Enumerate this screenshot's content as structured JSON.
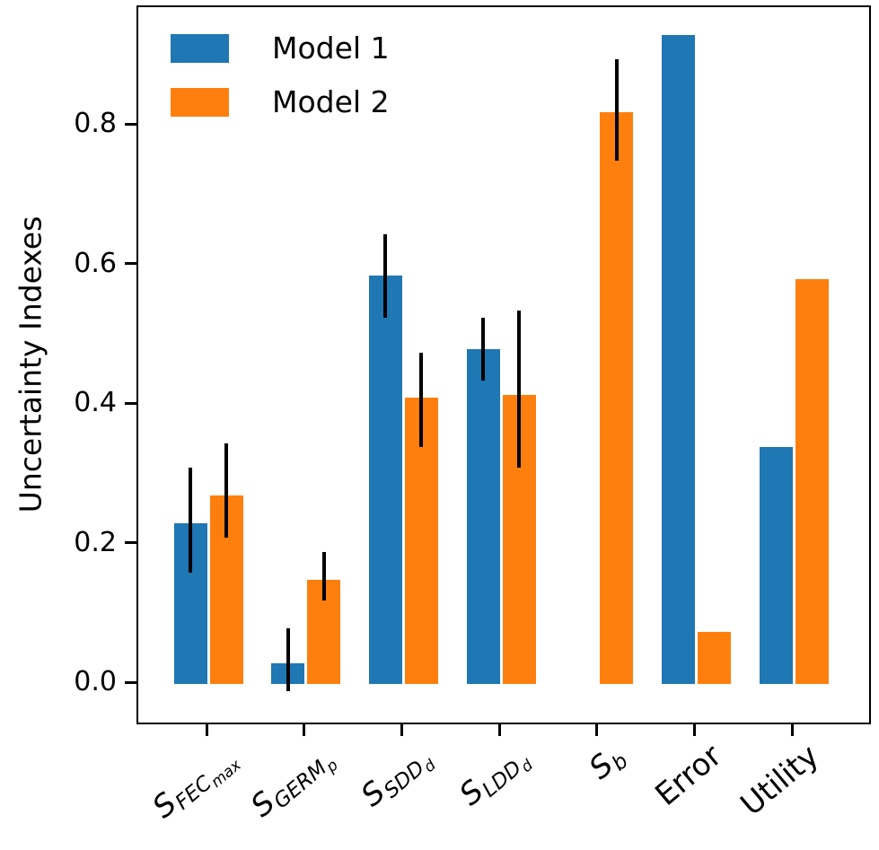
{
  "chart_data": {
    "type": "bar",
    "title": "",
    "xlabel": "",
    "ylabel": "Uncertainty Indexes",
    "ylim": [
      -0.06,
      0.97
    ],
    "yticks": [
      0.0,
      0.2,
      0.4,
      0.6,
      0.8
    ],
    "ytick_labels": [
      "0.0",
      "0.2",
      "0.4",
      "0.6",
      "0.8"
    ],
    "grid": false,
    "legend_position": "upper left",
    "error_bar_color": "#000000",
    "categories": [
      "S_FEC_max",
      "S_GERM_p",
      "S_SDD_d",
      "S_LDD_d",
      "S_b",
      "Error",
      "Utility"
    ],
    "categories_rich": [
      {
        "segments": [
          [
            "S",
            "base"
          ],
          [
            "FEC",
            "sub"
          ],
          [
            "max",
            "subsub"
          ]
        ]
      },
      {
        "segments": [
          [
            "S",
            "base"
          ],
          [
            "GERM",
            "sub"
          ],
          [
            "p",
            "subsub"
          ]
        ]
      },
      {
        "segments": [
          [
            "S",
            "base"
          ],
          [
            "SDD",
            "sub"
          ],
          [
            "d",
            "subsub"
          ]
        ]
      },
      {
        "segments": [
          [
            "S",
            "base"
          ],
          [
            "LDD",
            "sub"
          ],
          [
            "d",
            "subsub"
          ]
        ]
      },
      {
        "segments": [
          [
            "S",
            "base"
          ],
          [
            "b",
            "sub"
          ]
        ]
      },
      {
        "segments": [
          [
            "Error",
            "plain"
          ]
        ]
      },
      {
        "segments": [
          [
            "Utility",
            "plain"
          ]
        ]
      }
    ],
    "series": [
      {
        "name": "Model 1",
        "color": "#1f77b4",
        "values": [
          0.23,
          0.03,
          0.585,
          0.48,
          null,
          0.93,
          0.34
        ],
        "errors": [
          {
            "lo": 0.16,
            "hi": 0.31
          },
          {
            "lo": -0.01,
            "hi": 0.08
          },
          {
            "lo": 0.525,
            "hi": 0.645
          },
          {
            "lo": 0.435,
            "hi": 0.525
          },
          null,
          null,
          null
        ]
      },
      {
        "name": "Model 2",
        "color": "#ff7f0e",
        "values": [
          0.27,
          0.15,
          0.41,
          0.415,
          0.82,
          0.075,
          0.58
        ],
        "errors": [
          {
            "lo": 0.21,
            "hi": 0.345
          },
          {
            "lo": 0.12,
            "hi": 0.19
          },
          {
            "lo": 0.34,
            "hi": 0.475
          },
          {
            "lo": 0.31,
            "hi": 0.535
          },
          {
            "lo": 0.75,
            "hi": 0.895
          },
          null,
          null
        ]
      }
    ]
  }
}
